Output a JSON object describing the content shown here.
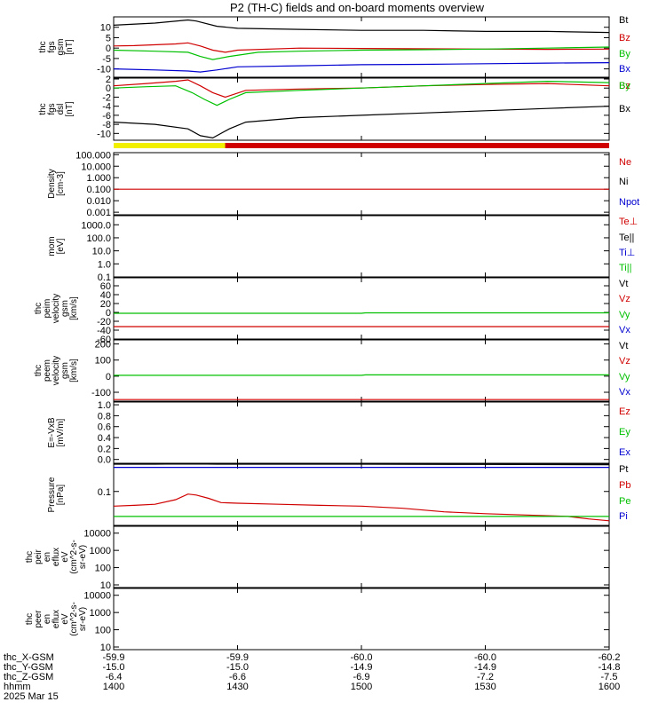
{
  "title": "P2 (TH-C) fields and on-board moments overview",
  "colors": {
    "black": "#000000",
    "red": "#d00000",
    "green": "#00c000",
    "blue": "#0000d0",
    "yellow": "#f0f000"
  },
  "chart_data": [
    {
      "type": "line",
      "id": "fgs-gsm",
      "ylabel": [
        "thc",
        "fgs",
        "gsm",
        "[nT]"
      ],
      "ylim": [
        -14,
        15
      ],
      "yticks": [
        10,
        5,
        0,
        -5,
        -10
      ],
      "yticklabels": [
        "10",
        "5",
        "0",
        "-5",
        "-10"
      ],
      "series": [
        {
          "name": "Bt",
          "color": "#000000",
          "x": [
            1400,
            1410,
            1418,
            1420,
            1425,
            1430,
            1445,
            1500,
            1515,
            1530,
            1545,
            1600
          ],
          "y": [
            11,
            12,
            13.5,
            13,
            10.5,
            9.5,
            9,
            8.5,
            8.5,
            8,
            8,
            7.5
          ]
        },
        {
          "name": "Bz",
          "color": "#d00000",
          "x": [
            1400,
            1405,
            1415,
            1418,
            1421,
            1424,
            1427,
            1430,
            1445,
            1500,
            1530,
            1545,
            1600
          ],
          "y": [
            1,
            1.2,
            2,
            2.5,
            1,
            -1,
            -2,
            -1,
            0,
            -0.2,
            -0.5,
            -0.6,
            -0.5
          ]
        },
        {
          "name": "By",
          "color": "#00c000",
          "x": [
            1400,
            1410,
            1418,
            1421,
            1424,
            1428,
            1435,
            1445,
            1500,
            1515,
            1530,
            1545,
            1600
          ],
          "y": [
            -1,
            -1.5,
            -2,
            -4,
            -5.5,
            -4,
            -2,
            -1.5,
            -1,
            -0.8,
            -0.5,
            0,
            0.5
          ]
        },
        {
          "name": "Bx",
          "color": "#0000d0",
          "x": [
            1400,
            1410,
            1418,
            1421,
            1425,
            1430,
            1445,
            1500,
            1515,
            1530,
            1545,
            1600
          ],
          "y": [
            -10,
            -10.5,
            -11,
            -11.5,
            -10.5,
            -9,
            -8.5,
            -8,
            -7.8,
            -7.5,
            -7.2,
            -7
          ]
        }
      ]
    },
    {
      "type": "line",
      "id": "fgs-dsl",
      "ylabel": [
        "thc",
        "fgs",
        "dsl",
        "[nT]"
      ],
      "ylim": [
        -11.5,
        2.2
      ],
      "yticks": [
        2,
        0,
        -2,
        -4,
        -6,
        -8,
        -10
      ],
      "yticklabels": [
        "2",
        "0",
        "-2",
        "-4",
        "-6",
        "-8",
        "-10"
      ],
      "series": [
        {
          "name": "Bz",
          "color": "#d00000",
          "x": [
            1400,
            1408,
            1415,
            1418,
            1421,
            1424,
            1427,
            1432,
            1445,
            1500,
            1515,
            1530,
            1545,
            1600
          ],
          "y": [
            0.5,
            1,
            1.5,
            1.8,
            0.5,
            -1,
            -2,
            -0.5,
            -0.2,
            0,
            0.5,
            0.8,
            1,
            0.5
          ]
        },
        {
          "name": "By",
          "color": "#00c000",
          "x": [
            1400,
            1408,
            1415,
            1419,
            1422,
            1425,
            1428,
            1432,
            1445,
            1500,
            1515,
            1530,
            1545,
            1600
          ],
          "y": [
            0,
            0.3,
            0.5,
            -1,
            -2.5,
            -3.8,
            -2.5,
            -1,
            -0.5,
            0,
            0.5,
            1,
            1.5,
            1.2
          ]
        },
        {
          "name": "Bx",
          "color": "#000000",
          "x": [
            1400,
            1410,
            1418,
            1421,
            1424,
            1428,
            1432,
            1445,
            1500,
            1515,
            1530,
            1545,
            1600
          ],
          "y": [
            -7.5,
            -8,
            -9,
            -10.5,
            -11,
            -9,
            -7.5,
            -6.5,
            -6,
            -5.5,
            -5,
            -4.5,
            -4
          ]
        }
      ]
    },
    {
      "type": "bar",
      "id": "mode-bar",
      "segments": [
        {
          "x0": 1400,
          "x1": 1427,
          "color": "#f0f000"
        },
        {
          "x0": 1427,
          "x1": 1600,
          "color": "#d00000"
        }
      ]
    },
    {
      "type": "line",
      "id": "density",
      "ylabel": [
        "Density",
        "[cm-3]"
      ],
      "yscale": "log",
      "ylim": [
        0.0006,
        150
      ],
      "yticks": [
        100,
        10,
        1,
        0.1,
        0.01,
        0.001
      ],
      "yticklabels": [
        "100.000",
        "10.000",
        "1.000",
        "0.100",
        "0.010",
        "0.001"
      ],
      "series": [
        {
          "name": "Ne",
          "color": "#d00000",
          "x": [
            1400,
            1600
          ],
          "y": [
            0.1,
            0.1
          ]
        },
        {
          "name": "Ni",
          "color": "#000000",
          "x": [],
          "y": []
        },
        {
          "name": "Npot",
          "color": "#0000d0",
          "x": [],
          "y": []
        }
      ]
    },
    {
      "type": "line",
      "id": "temperature",
      "ylabel": [
        "mom",
        "[eV]"
      ],
      "yscale": "log",
      "ylim": [
        0.1,
        5000
      ],
      "yticks": [
        1000,
        100,
        10,
        1,
        0.1
      ],
      "yticklabels": [
        "1000.0",
        "100.0",
        "10.0",
        "1.0",
        "0.1"
      ],
      "series": [
        {
          "name": "Te⊥",
          "color": "#d00000",
          "x": [],
          "y": []
        },
        {
          "name": "Te||",
          "color": "#000000",
          "x": [],
          "y": []
        },
        {
          "name": "Ti⊥",
          "color": "#0000d0",
          "x": [],
          "y": []
        },
        {
          "name": "Ti||",
          "color": "#00c000",
          "x": [],
          "y": []
        }
      ]
    },
    {
      "type": "line",
      "id": "peim-velocity",
      "ylabel": [
        "thc",
        "peim",
        "velocity",
        "gsm",
        "[km/s]"
      ],
      "ylim": [
        -60,
        78
      ],
      "yticks": [
        60,
        40,
        20,
        0,
        -20,
        -40,
        -60
      ],
      "yticklabels": [
        "60",
        "40",
        "20",
        "0",
        "-20",
        "-40",
        "-60"
      ],
      "series": [
        {
          "name": "Vt",
          "color": "#000000",
          "x": [],
          "y": []
        },
        {
          "name": "Vz",
          "color": "#d00000",
          "x": [
            1400,
            1600
          ],
          "y": [
            -32,
            -32
          ]
        },
        {
          "name": "Vy",
          "color": "#00c000",
          "x": [
            1400,
            1500,
            1501,
            1600
          ],
          "y": [
            -2,
            -2,
            -1,
            -1
          ]
        },
        {
          "name": "Vx",
          "color": "#0000d0",
          "x": [],
          "y": []
        }
      ]
    },
    {
      "type": "line",
      "id": "peem-velocity",
      "ylabel": [
        "thc",
        "peem",
        "velocity",
        "gsm",
        "[km/s]"
      ],
      "ylim": [
        -155,
        225
      ],
      "yticks": [
        200,
        100,
        0,
        -100
      ],
      "yticklabels": [
        "200",
        "100",
        "0",
        "-100"
      ],
      "series": [
        {
          "name": "Vt",
          "color": "#000000",
          "x": [],
          "y": []
        },
        {
          "name": "Vz",
          "color": "#d00000",
          "x": [
            1400,
            1600
          ],
          "y": [
            -145,
            -145
          ]
        },
        {
          "name": "Vy",
          "color": "#00c000",
          "x": [
            1400,
            1500,
            1501,
            1600
          ],
          "y": [
            5,
            5,
            8,
            8
          ]
        },
        {
          "name": "Vx",
          "color": "#0000d0",
          "x": [],
          "y": []
        }
      ]
    },
    {
      "type": "line",
      "id": "efield",
      "ylabel": [
        "E=-VxB",
        "[mV/m]"
      ],
      "ylim": [
        -0.07,
        1.05
      ],
      "yticks": [
        1.0,
        0.8,
        0.6,
        0.4,
        0.2,
        0.0
      ],
      "yticklabels": [
        "1.0",
        "0.8",
        "0.6",
        "0.4",
        "0.2",
        "0.0"
      ],
      "series": [
        {
          "name": "Ez",
          "color": "#d00000",
          "x": [],
          "y": []
        },
        {
          "name": "Ey",
          "color": "#00c000",
          "x": [],
          "y": []
        },
        {
          "name": "Ex",
          "color": "#0000d0",
          "x": [],
          "y": []
        }
      ]
    },
    {
      "type": "line",
      "id": "pressure",
      "ylabel": [
        "Pressure",
        "[nPa]"
      ],
      "yscale": "log",
      "ylim": [
        0.012,
        0.55
      ],
      "yticks": [
        0.1
      ],
      "yticklabels": [
        "0.1"
      ],
      "series": [
        {
          "name": "Pt",
          "color": "#000000",
          "x": [
            1400,
            1410,
            1418,
            1425,
            1445,
            1500,
            1530,
            1600
          ],
          "y": [
            0.55,
            0.55,
            0.56,
            0.55,
            0.55,
            0.55,
            0.54,
            0.53
          ]
        },
        {
          "name": "Pb",
          "color": "#d00000",
          "x": [
            1400,
            1405,
            1410,
            1415,
            1418,
            1420,
            1423,
            1426,
            1430,
            1440,
            1450,
            1500,
            1510,
            1520,
            1530,
            1540,
            1550,
            1555,
            1600
          ],
          "y": [
            0.04,
            0.042,
            0.045,
            0.06,
            0.085,
            0.08,
            0.065,
            0.05,
            0.048,
            0.045,
            0.042,
            0.04,
            0.035,
            0.028,
            0.025,
            0.023,
            0.021,
            0.018,
            0.016
          ]
        },
        {
          "name": "Pe",
          "color": "#00c000",
          "x": [
            1400,
            1600
          ],
          "y": [
            0.021,
            0.021
          ]
        },
        {
          "name": "Pi",
          "color": "#0000d0",
          "x": [
            1400,
            1600
          ],
          "y": [
            0.45,
            0.45
          ]
        }
      ]
    },
    {
      "type": "heatmap",
      "id": "peir-spec",
      "ylabel": [
        "thc",
        "peir",
        "en",
        "eflux",
        "eV",
        "(cm^2-s-",
        "sr-eV)"
      ],
      "yscale": "log",
      "ylim": [
        7,
        25000
      ],
      "yticks": [
        10000,
        1000,
        100,
        10
      ],
      "yticklabels": [
        "10000",
        "1000",
        "100",
        "10"
      ]
    },
    {
      "type": "heatmap",
      "id": "peer-spec",
      "ylabel": [
        "thc",
        "peer",
        "en",
        "eflux",
        "eV",
        "(cm^2-s-",
        "sr-eV)"
      ],
      "yscale": "log",
      "ylim": [
        7,
        25000
      ],
      "yticks": [
        10000,
        1000,
        100,
        10
      ],
      "yticklabels": [
        "10000",
        "1000",
        "100",
        "10"
      ]
    }
  ],
  "x_axis": {
    "xlim": [
      1400,
      1600
    ],
    "tick_values": [
      1400,
      1430,
      1500,
      1530,
      1600
    ],
    "row_labels": [
      "thc_X-GSM",
      "thc_Y-GSM",
      "thc_Z-GSM",
      "hhmm",
      "2025 Mar 15"
    ],
    "rows": [
      [
        "-59.9",
        "-59.9",
        "-60.0",
        "-60.0",
        "-60.2"
      ],
      [
        "-15.0",
        "-15.0",
        "-14.9",
        "-14.9",
        "-14.8"
      ],
      [
        "-6.4",
        "-6.6",
        "-6.9",
        "-7.2",
        "-7.5"
      ],
      [
        "1400",
        "1430",
        "1500",
        "1530",
        "1600"
      ]
    ]
  }
}
